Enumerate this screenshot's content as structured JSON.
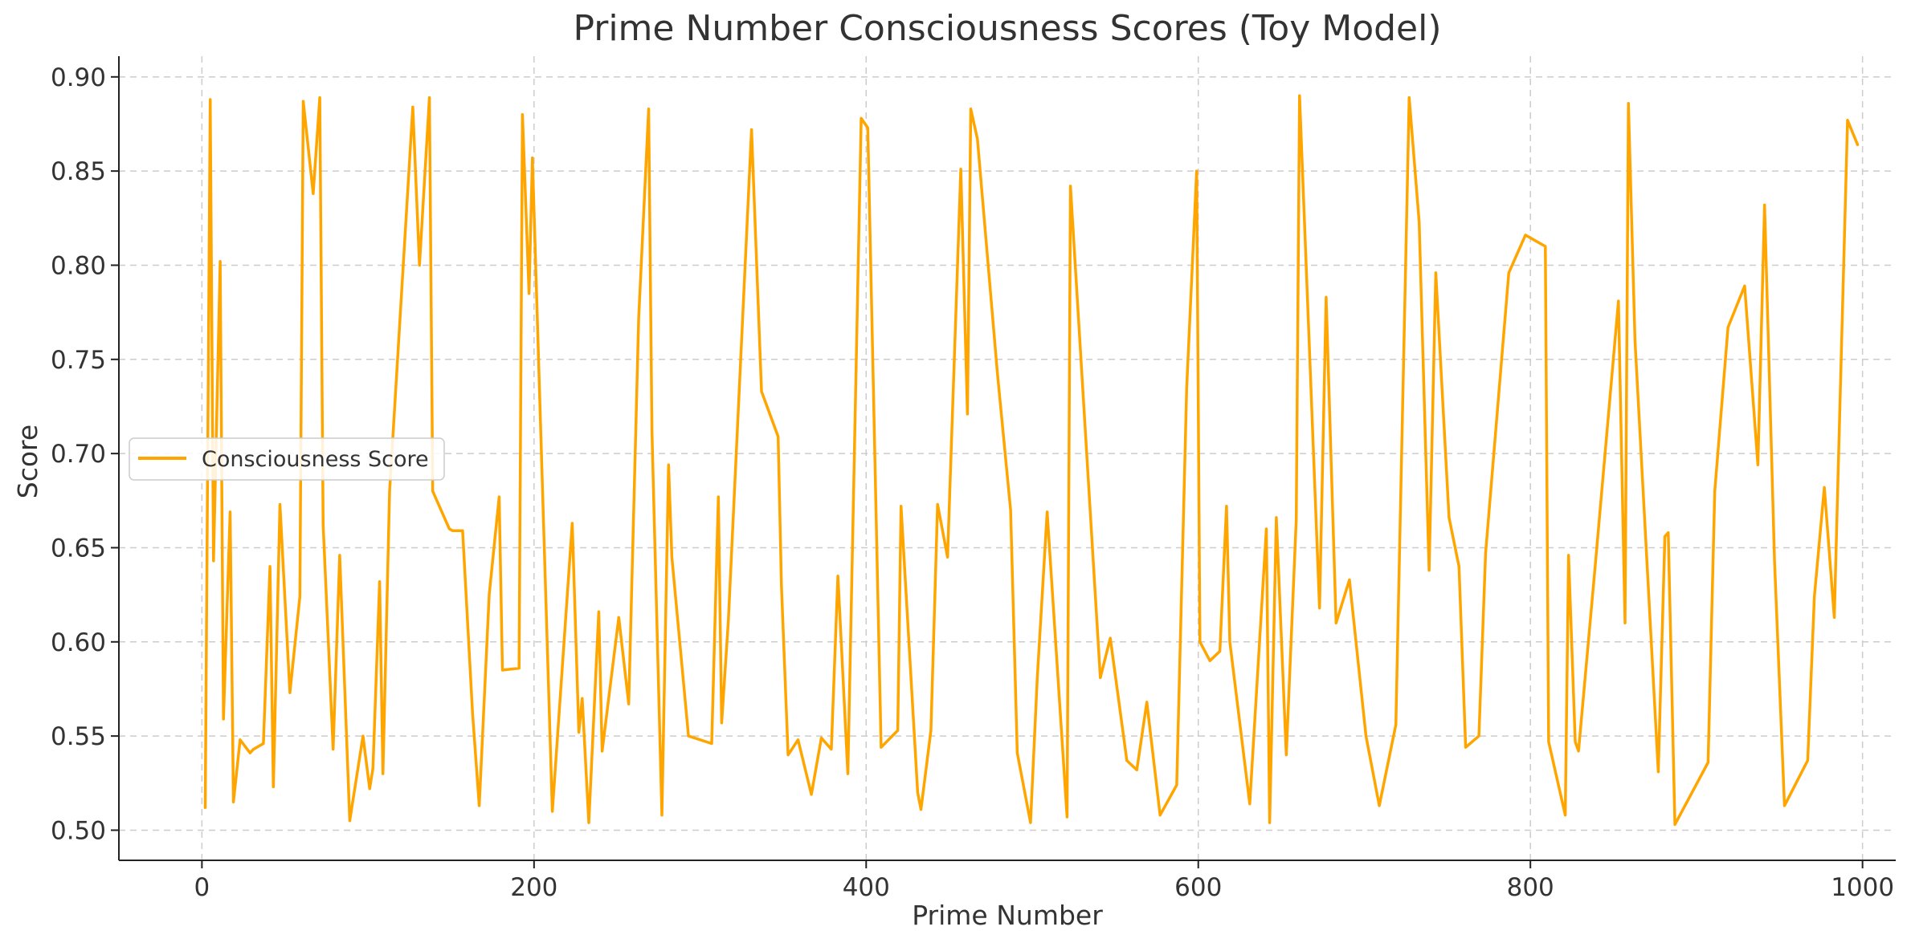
{
  "chart_data": {
    "type": "line",
    "title": "Prime Number Consciousness Scores (Toy Model)",
    "xlabel": "Prime Number",
    "ylabel": "Score",
    "xlim": [
      -50,
      1020
    ],
    "ylim": [
      0.484,
      0.911
    ],
    "xticks": [
      0,
      200,
      400,
      600,
      800,
      1000
    ],
    "xtick_labels": [
      "0",
      "200",
      "400",
      "600",
      "800",
      "1000"
    ],
    "yticks": [
      0.5,
      0.55,
      0.6,
      0.65,
      0.7,
      0.75,
      0.8,
      0.85,
      0.9
    ],
    "ytick_labels": [
      "0.50",
      "0.55",
      "0.60",
      "0.65",
      "0.70",
      "0.75",
      "0.80",
      "0.85",
      "0.90"
    ],
    "grid": true,
    "legend_position": "center-left",
    "series": [
      {
        "name": "Consciousness Score",
        "color": "#FFA500",
        "x": [
          2,
          5,
          7,
          11,
          13,
          17,
          19,
          23,
          29,
          31,
          37,
          41,
          43,
          47,
          53,
          59,
          61,
          67,
          71,
          73,
          79,
          83,
          89,
          97,
          101,
          103,
          107,
          109,
          113,
          127,
          131,
          137,
          139,
          149,
          151,
          157,
          163,
          167,
          173,
          179,
          181,
          191,
          193,
          197,
          199,
          211,
          223,
          227,
          229,
          233,
          239,
          241,
          251,
          257,
          263,
          269,
          271,
          277,
          281,
          283,
          293,
          307,
          311,
          313,
          317,
          331,
          337,
          347,
          349,
          353,
          359,
          367,
          373,
          379,
          383,
          389,
          397,
          401,
          409,
          419,
          421,
          431,
          433,
          439,
          443,
          449,
          457,
          461,
          463,
          467,
          479,
          487,
          491,
          499,
          503,
          509,
          521,
          523,
          541,
          547,
          557,
          563,
          569,
          571,
          577,
          587,
          593,
          599,
          601,
          607,
          613,
          617,
          619,
          631,
          641,
          643,
          647,
          653,
          659,
          661,
          673,
          677,
          683,
          691,
          701,
          709,
          719,
          727,
          733,
          739,
          743,
          751,
          757,
          761,
          769,
          773,
          787,
          797,
          809,
          811,
          821,
          823,
          827,
          829,
          839,
          853,
          857,
          859,
          863,
          877,
          881,
          883,
          887,
          907,
          911,
          919,
          929,
          937,
          941,
          947,
          953,
          967,
          971,
          977,
          983,
          991,
          997
        ],
        "values": [
          0.512,
          0.888,
          0.643,
          0.802,
          0.559,
          0.669,
          0.515,
          0.548,
          0.541,
          0.543,
          0.546,
          0.64,
          0.523,
          0.673,
          0.573,
          0.624,
          0.887,
          0.838,
          0.889,
          0.662,
          0.543,
          0.646,
          0.505,
          0.55,
          0.522,
          0.533,
          0.632,
          0.53,
          0.68,
          0.884,
          0.8,
          0.889,
          0.68,
          0.66,
          0.659,
          0.659,
          0.562,
          0.513,
          0.625,
          0.677,
          0.585,
          0.586,
          0.88,
          0.785,
          0.857,
          0.51,
          0.663,
          0.552,
          0.57,
          0.504,
          0.616,
          0.542,
          0.613,
          0.567,
          0.772,
          0.883,
          0.712,
          0.508,
          0.694,
          0.645,
          0.55,
          0.546,
          0.677,
          0.557,
          0.611,
          0.872,
          0.733,
          0.709,
          0.63,
          0.54,
          0.548,
          0.519,
          0.549,
          0.543,
          0.635,
          0.53,
          0.878,
          0.873,
          0.544,
          0.553,
          0.672,
          0.52,
          0.511,
          0.553,
          0.673,
          0.645,
          0.851,
          0.721,
          0.883,
          0.867,
          0.743,
          0.67,
          0.541,
          0.504,
          0.58,
          0.669,
          0.507,
          0.842,
          0.581,
          0.602,
          0.537,
          0.532,
          0.568,
          0.553,
          0.508,
          0.524,
          0.735,
          0.85,
          0.6,
          0.59,
          0.595,
          0.672,
          0.6,
          0.514,
          0.66,
          0.504,
          0.666,
          0.54,
          0.665,
          0.89,
          0.618,
          0.783,
          0.61,
          0.633,
          0.55,
          0.513,
          0.556,
          0.889,
          0.823,
          0.638,
          0.796,
          0.666,
          0.64,
          0.544,
          0.55,
          0.647,
          0.796,
          0.816,
          0.81,
          0.547,
          0.508,
          0.646,
          0.547,
          0.542,
          0.64,
          0.781,
          0.61,
          0.886,
          0.76,
          0.531,
          0.656,
          0.658,
          0.503,
          0.536,
          0.68,
          0.767,
          0.789,
          0.694,
          0.832,
          0.643,
          0.513,
          0.537,
          0.624,
          0.682,
          0.613,
          0.877,
          0.864
        ]
      }
    ]
  }
}
